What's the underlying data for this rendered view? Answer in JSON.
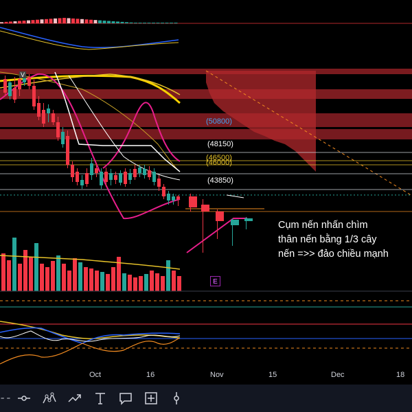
{
  "price_labels": [
    {
      "text": "(50800)",
      "color": "#42a5f5"
    },
    {
      "text": "(48150)",
      "color": "#ffffff"
    },
    {
      "text": "(46500)",
      "color": "#e6c229"
    },
    {
      "text": "(46000)",
      "color": "#e6c229"
    },
    {
      "text": "(43850)",
      "color": "#ffffff"
    }
  ],
  "time_axis": [
    "Oct",
    "16",
    "Nov",
    "15",
    "Dec",
    "18"
  ],
  "annotation": {
    "line1": "Cụm nến nhấn chìm",
    "line2": "thân nến bằng 1/3 cây",
    "line3": "nến =>> đảo chiều mạnh"
  },
  "event_marker": "E",
  "version_marker": "V",
  "colors": {
    "bull": "#26a69a",
    "bear": "#f23645",
    "zone": "#b2282c",
    "yellow_ma": "#f5d000",
    "pink_band": "#e91e8c",
    "white_line": "#ffffff",
    "orange_dash": "#f28b20"
  },
  "toolbar": {
    "items": [
      {
        "name": "cursor-icon",
        "glyph": "⌗"
      },
      {
        "name": "horizontal-line-icon",
        "glyph": "-o-"
      },
      {
        "name": "pattern-icon",
        "glyph": "xabcd"
      },
      {
        "name": "path-icon",
        "glyph": "path"
      },
      {
        "name": "text-icon",
        "glyph": "T"
      },
      {
        "name": "callout-icon",
        "glyph": "callout"
      },
      {
        "name": "measure-icon",
        "glyph": "measure"
      },
      {
        "name": "vertical-line-icon",
        "glyph": "vline"
      }
    ]
  }
}
